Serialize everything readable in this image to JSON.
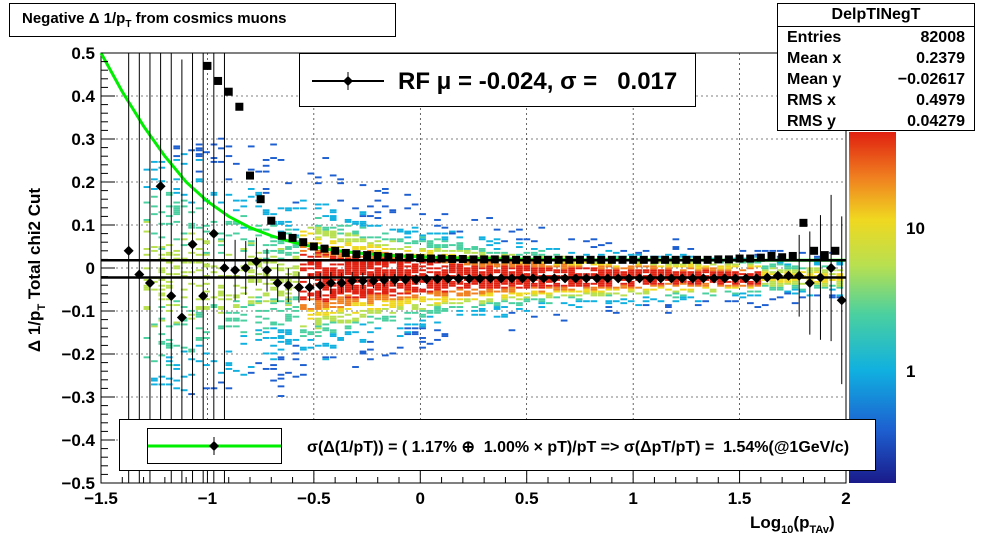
{
  "title": "Negative Δ 1/p_T from cosmics muons",
  "title_parts": {
    "main": "Negative Δ 1/p",
    "sub": "T",
    "rest": " from cosmics muons"
  },
  "stats": {
    "name": "DelpTINegT",
    "rows": [
      {
        "label": "Entries",
        "value": "82008"
      },
      {
        "label": "Mean x",
        "value": "0.2379"
      },
      {
        "label": "Mean y",
        "value": "−0.02617"
      },
      {
        "label": "RMS x",
        "value": "0.4979"
      },
      {
        "label": "RMS y",
        "value": "0.04279"
      }
    ]
  },
  "fit_label": "RF μ = -0.024, σ =   0.017",
  "resolution_label": "σ(Δ(1/pT)) = ( 1.17% ⊕  1.00% × pT)/pT => σ(ΔpT/pT) =  1.54%(@1GeV/c)",
  "ylabel_main": "Δ 1/p",
  "ylabel_sub": "T",
  "ylabel_extra": "Total chi2 Cut",
  "xlabel_main": "Log",
  "xlabel_sub": "10",
  "xlabel_rest": "(p",
  "xlabel_sub2": "TAv",
  "xlabel_close": ")",
  "colors": {
    "fit_curve": "#00ee00",
    "mean_line": "#000000",
    "mean_points": "#000000"
  },
  "chart_data": {
    "type": "heatmap",
    "title": "Negative Δ 1/p_T from cosmics muons",
    "xlabel": "Log10(pTAv)",
    "ylabel": "Δ 1/pT   Total chi2 Cut",
    "xlim": [
      -1.5,
      2
    ],
    "ylim": [
      -0.5,
      0.5
    ],
    "x_ticks": [
      "−1.5",
      "−1",
      "−0.5",
      "0",
      "0.5",
      "1",
      "1.5",
      "2"
    ],
    "y_ticks": [
      "−0.5",
      "−0.4",
      "−0.3",
      "−0.2",
      "−0.1",
      "0",
      "0.1",
      "0.2",
      "0.3",
      "0.4",
      "0.5"
    ],
    "colorbar_ticks": [
      "1",
      "10"
    ],
    "colorbar_scale": "log",
    "grid": true,
    "series": [
      {
        "type": "points",
        "x": [
          -1.37,
          -1.32,
          -1.27,
          -1.22,
          -1.17,
          -1.12,
          -1.07,
          -1.02,
          -0.97,
          -0.92,
          -0.87,
          -0.82,
          -0.77,
          -0.72,
          -0.67,
          -0.62,
          -0.57,
          -0.52,
          -0.47,
          -0.42,
          -0.37,
          -0.32,
          -0.27,
          -0.22,
          -0.17,
          -0.12,
          -0.07,
          -0.02,
          0.03,
          0.08,
          0.13,
          0.18,
          0.23,
          0.28,
          0.33,
          0.38,
          0.43,
          0.48,
          0.53,
          0.58,
          0.63,
          0.68,
          0.73,
          0.78,
          0.83,
          0.88,
          0.93,
          0.98,
          1.03,
          1.08,
          1.13,
          1.18,
          1.23,
          1.28,
          1.33,
          1.38,
          1.43,
          1.48,
          1.53,
          1.58,
          1.63,
          1.68,
          1.73,
          1.78,
          1.83,
          1.88,
          1.93,
          1.98
        ],
        "y": [
          0.04,
          -0.015,
          -0.035,
          0.19,
          -0.065,
          -0.115,
          0.055,
          -0.065,
          0.08,
          0.0,
          -0.005,
          0.0,
          0.015,
          -0.005,
          -0.035,
          -0.04,
          -0.045,
          -0.045,
          -0.04,
          -0.035,
          -0.035,
          -0.03,
          -0.03,
          -0.03,
          -0.028,
          -0.028,
          -0.027,
          -0.027,
          -0.026,
          -0.026,
          -0.025,
          -0.025,
          -0.025,
          -0.025,
          -0.024,
          -0.024,
          -0.024,
          -0.024,
          -0.024,
          -0.024,
          -0.024,
          -0.024,
          -0.024,
          -0.024,
          -0.024,
          -0.024,
          -0.024,
          -0.024,
          -0.024,
          -0.024,
          -0.024,
          -0.024,
          -0.024,
          -0.024,
          -0.024,
          -0.024,
          -0.024,
          -0.024,
          -0.024,
          -0.024,
          -0.022,
          -0.018,
          -0.018,
          -0.018,
          -0.035,
          -0.022,
          0.0,
          -0.075
        ]
      },
      {
        "type": "points",
        "x": [
          -1.0,
          -0.95,
          -0.9,
          -0.85,
          -0.8,
          -0.75,
          -0.7,
          -0.65,
          -0.6,
          -0.55,
          -0.5,
          -0.45,
          -0.4,
          -0.35,
          -0.3,
          -0.25,
          -0.2,
          -0.15,
          -0.1,
          -0.05,
          0.0,
          0.05,
          0.1,
          0.15,
          0.2,
          0.25,
          0.3,
          0.35,
          0.4,
          0.45,
          0.5,
          0.55,
          0.6,
          0.65,
          0.7,
          0.75,
          0.8,
          0.85,
          0.9,
          0.95,
          1.0,
          1.05,
          1.1,
          1.15,
          1.2,
          1.25,
          1.3,
          1.35,
          1.4,
          1.45,
          1.5,
          1.55,
          1.6,
          1.65,
          1.7,
          1.75,
          1.8,
          1.85,
          1.9,
          1.95
        ],
        "y": [
          0.47,
          0.435,
          0.41,
          0.375,
          0.215,
          0.16,
          0.11,
          0.075,
          0.07,
          0.06,
          0.05,
          0.045,
          0.04,
          0.035,
          0.032,
          0.03,
          0.028,
          0.026,
          0.025,
          0.024,
          0.023,
          0.022,
          0.022,
          0.021,
          0.021,
          0.02,
          0.02,
          0.02,
          0.02,
          0.019,
          0.019,
          0.019,
          0.019,
          0.019,
          0.019,
          0.019,
          0.019,
          0.019,
          0.019,
          0.019,
          0.019,
          0.019,
          0.019,
          0.019,
          0.019,
          0.019,
          0.019,
          0.019,
          0.02,
          0.02,
          0.022,
          0.022,
          0.024,
          0.028,
          0.025,
          0.028,
          0.105,
          0.04,
          0.03,
          0.04
        ]
      },
      {
        "type": "line",
        "name": "mean_low",
        "y": -0.022
      },
      {
        "type": "line",
        "name": "mean_high",
        "y": 0.018
      },
      {
        "type": "curve",
        "x": [
          -1.5,
          -1.4,
          -1.3,
          -1.2,
          -1.1,
          -1.0,
          -0.9,
          -0.8,
          -0.7,
          -0.6,
          -0.5,
          -0.4,
          -0.3,
          -0.2,
          -0.1,
          0.0,
          0.2,
          0.4,
          0.6,
          0.8,
          1.0,
          1.5,
          2.0
        ],
        "y": [
          0.5,
          0.41,
          0.33,
          0.26,
          0.2,
          0.155,
          0.12,
          0.094,
          0.075,
          0.06,
          0.049,
          0.041,
          0.035,
          0.031,
          0.028,
          0.026,
          0.023,
          0.021,
          0.02,
          0.019,
          0.019,
          0.018,
          0.018
        ]
      }
    ]
  }
}
